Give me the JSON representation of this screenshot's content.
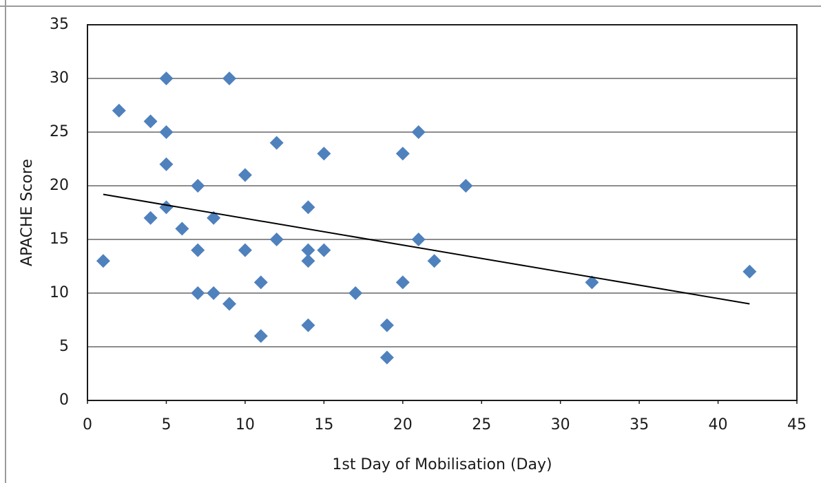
{
  "chart_data": {
    "type": "scatter",
    "xlabel": "1st Day of Mobilisation (Day)",
    "ylabel": "APACHE Score",
    "x": [
      1,
      2,
      4,
      4,
      5,
      5,
      5,
      5,
      6,
      7,
      7,
      7,
      8,
      8,
      9,
      9,
      10,
      10,
      11,
      11,
      12,
      12,
      14,
      14,
      14,
      14,
      15,
      15,
      17,
      19,
      19,
      20,
      20,
      21,
      21,
      22,
      24,
      32,
      42
    ],
    "values": [
      13,
      27,
      26,
      17,
      30,
      25,
      22,
      18,
      16,
      20,
      14,
      10,
      17,
      10,
      30,
      9,
      21,
      14,
      11,
      6,
      24,
      15,
      18,
      14,
      13,
      7,
      23,
      14,
      10,
      7,
      4,
      23,
      11,
      25,
      15,
      13,
      20,
      11,
      12
    ],
    "color": "#4f81bd",
    "trendline": {
      "x": [
        1,
        42
      ],
      "values": [
        19.2,
        9.0
      ],
      "color": "#000000"
    },
    "xlim": [
      0,
      45
    ],
    "xticks": [
      0,
      5,
      10,
      15,
      20,
      25,
      30,
      35,
      40,
      45
    ],
    "ylim": [
      0,
      35
    ],
    "yticks": [
      0,
      5,
      10,
      15,
      20,
      25,
      30,
      35
    ],
    "grid": true
  }
}
